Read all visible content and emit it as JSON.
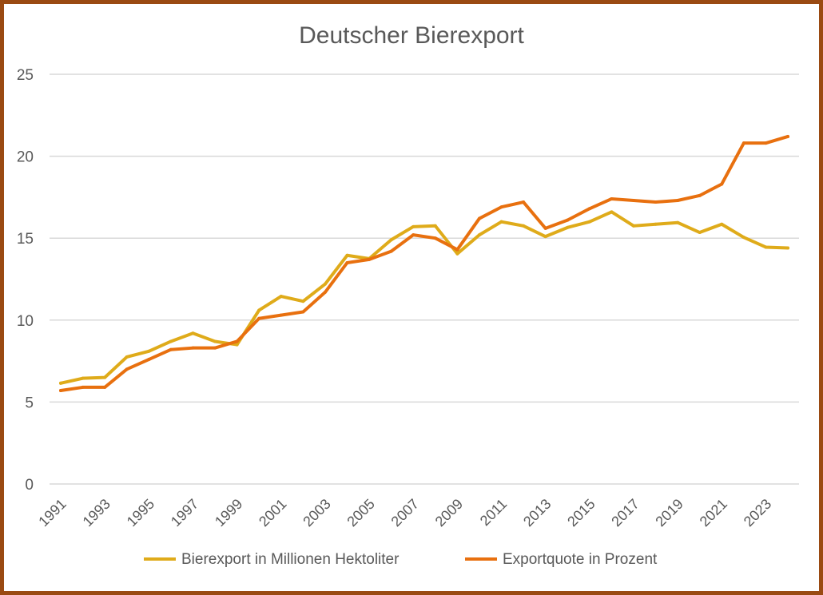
{
  "chart_data": {
    "type": "line",
    "title": "Deutscher Bierexport",
    "xlabel": "",
    "ylabel": "",
    "ylim": [
      0,
      25
    ],
    "yticks": [
      0,
      5,
      10,
      15,
      20,
      25
    ],
    "grid": true,
    "legend_position": "bottom",
    "x": [
      1991,
      1992,
      1993,
      1994,
      1995,
      1996,
      1997,
      1998,
      1999,
      2000,
      2001,
      2002,
      2003,
      2004,
      2005,
      2006,
      2007,
      2008,
      2009,
      2010,
      2011,
      2012,
      2013,
      2014,
      2015,
      2016,
      2017,
      2018,
      2019,
      2020,
      2021,
      2022,
      2023,
      2024
    ],
    "xtick_labels": [
      "1991",
      "1993",
      "1995",
      "1997",
      "1999",
      "2001",
      "2003",
      "2005",
      "2007",
      "2009",
      "2011",
      "2013",
      "2015",
      "2017",
      "2019",
      "2021",
      "2023"
    ],
    "series": [
      {
        "name": "Bierexport in Millionen Hektoliter",
        "color": "#dfab1a",
        "values": [
          6.15,
          6.45,
          6.5,
          7.75,
          8.1,
          8.7,
          9.2,
          8.7,
          8.5,
          10.6,
          11.45,
          11.15,
          12.2,
          13.95,
          13.75,
          14.9,
          15.7,
          15.75,
          14.05,
          15.2,
          16.0,
          15.75,
          15.1,
          15.65,
          16.0,
          16.6,
          15.75,
          15.85,
          15.95,
          15.35,
          15.85,
          15.05,
          14.45,
          14.4
        ]
      },
      {
        "name": "Exportquote in Prozent",
        "color": "#e8700f",
        "values": [
          5.7,
          5.9,
          5.9,
          7.0,
          7.6,
          8.2,
          8.3,
          8.3,
          8.7,
          10.1,
          10.3,
          10.5,
          11.7,
          13.5,
          13.7,
          14.2,
          15.2,
          15.0,
          14.3,
          16.2,
          16.9,
          17.2,
          15.6,
          16.1,
          16.8,
          17.4,
          17.3,
          17.2,
          17.3,
          17.6,
          18.3,
          20.8,
          20.8,
          21.2
        ]
      }
    ]
  }
}
